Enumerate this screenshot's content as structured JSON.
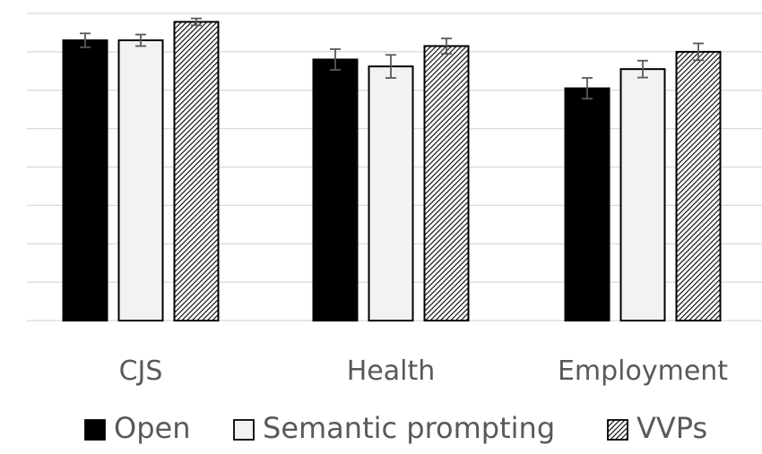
{
  "chart_data": {
    "type": "bar",
    "title": "",
    "xlabel": "",
    "ylabel": "",
    "categories": [
      "CJS",
      "Health",
      "Employment"
    ],
    "ylim": [
      0,
      8
    ],
    "grid": true,
    "gridlines": 8,
    "y_tick_labels_shown": false,
    "legend_position": "bottom",
    "series": [
      {
        "name": "Open",
        "values": [
          7.3,
          6.8,
          6.05
        ],
        "errors": [
          0.18,
          0.27,
          0.27
        ],
        "fill": "solid",
        "color": "#000000"
      },
      {
        "name": "Semantic prompting",
        "values": [
          7.3,
          6.62,
          6.55
        ],
        "errors": [
          0.15,
          0.3,
          0.22
        ],
        "fill": "light",
        "color": "#f2f2f2"
      },
      {
        "name": "VVPs",
        "values": [
          7.78,
          7.15,
          7.0
        ],
        "errors": [
          0.09,
          0.2,
          0.22
        ],
        "fill": "hatched",
        "color": "#000000"
      }
    ]
  }
}
